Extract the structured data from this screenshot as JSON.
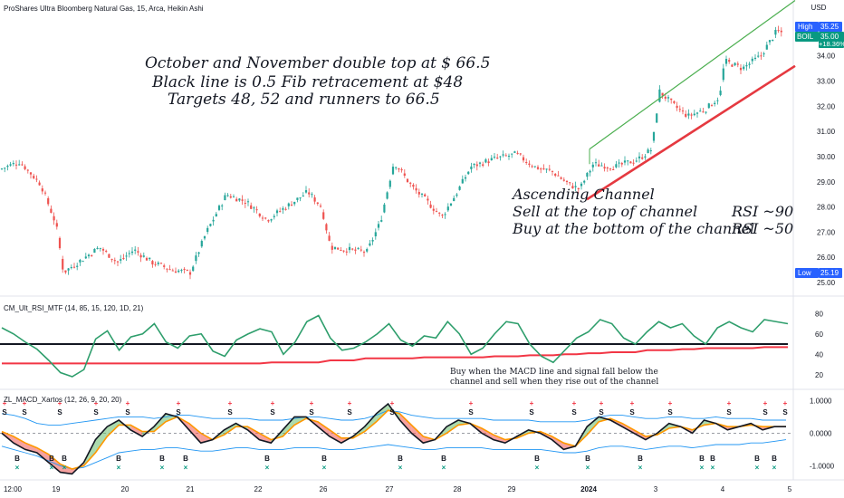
{
  "header": {
    "title": "ProShares Ultra Bloomberg Natural Gas, 15, Arca, Heikin Ashi",
    "currency": "USD"
  },
  "price_badges": {
    "high_label": "High",
    "high_value": "35.25",
    "symbol": "BOIL",
    "last_value": "35.00",
    "change": "+18.36%",
    "low_label": "Low",
    "low_value": "25.19"
  },
  "annotations": {
    "top_line1": "October and November double top at $ 66.5",
    "top_line2": "Black line is 0.5 Fib retracement at  $48",
    "top_line3": "Targets 48, 52 and runners to 66.5",
    "channel_line1": "Ascending Channel",
    "channel_line2": "Sell at the top of channel",
    "channel_line2b": "RSI ~90",
    "channel_line3": "Buy at the bottom of the channel",
    "channel_line3b": "RSI  ~50",
    "macd_note1": "Buy when the MACD line and signal fall below the",
    "macd_note2": "channel and sell when they rise out of the channel"
  },
  "colors": {
    "up": "#26a69a",
    "down": "#ef5350",
    "channel_upper": "#4caf50",
    "channel_lower": "#e53940",
    "rsi": "#2e9e6c",
    "rsi_ref": "#131722",
    "rsi_mtf": "#f23645",
    "macd": "#131722",
    "signal": "#ff9800",
    "band": "#2196f3",
    "badge_blue": "#2962ff",
    "badge_green": "#089981"
  },
  "chart_data": [
    {
      "type": "candlestick",
      "title": "ProShares Ultra Bloomberg Natural Gas, 15, Arca, Heikin Ashi",
      "y_axis_ticks": [
        "34.00",
        "33.00",
        "32.00",
        "31.00",
        "30.00",
        "29.00",
        "28.00",
        "27.00",
        "26.00",
        "25.00"
      ],
      "ylim": [
        25.0,
        35.5
      ],
      "x_axis_ticks": [
        "12:00",
        "19",
        "20",
        "21",
        "22",
        "26",
        "27",
        "28",
        "29",
        "2024",
        "3",
        "4",
        "5"
      ],
      "high": 35.25,
      "low": 25.19,
      "last": 35.0,
      "close_path": [
        {
          "x": 0,
          "y": 29.5
        },
        {
          "x": 22,
          "y": 29.8
        },
        {
          "x": 45,
          "y": 28.9
        },
        {
          "x": 62,
          "y": 27.3
        },
        {
          "x": 70,
          "y": 25.4
        },
        {
          "x": 90,
          "y": 25.9
        },
        {
          "x": 110,
          "y": 26.4
        },
        {
          "x": 130,
          "y": 25.8
        },
        {
          "x": 148,
          "y": 26.3
        },
        {
          "x": 168,
          "y": 25.8
        },
        {
          "x": 190,
          "y": 25.5
        },
        {
          "x": 210,
          "y": 25.4
        },
        {
          "x": 228,
          "y": 27.0
        },
        {
          "x": 250,
          "y": 28.5
        },
        {
          "x": 272,
          "y": 28.2
        },
        {
          "x": 295,
          "y": 27.5
        },
        {
          "x": 320,
          "y": 28.1
        },
        {
          "x": 340,
          "y": 28.6
        },
        {
          "x": 355,
          "y": 28.0
        },
        {
          "x": 365,
          "y": 26.4
        },
        {
          "x": 385,
          "y": 26.3
        },
        {
          "x": 405,
          "y": 26.2
        },
        {
          "x": 420,
          "y": 27.4
        },
        {
          "x": 435,
          "y": 29.8
        },
        {
          "x": 455,
          "y": 28.8
        },
        {
          "x": 472,
          "y": 28.2
        },
        {
          "x": 488,
          "y": 27.6
        },
        {
          "x": 505,
          "y": 28.6
        },
        {
          "x": 520,
          "y": 29.6
        },
        {
          "x": 545,
          "y": 29.9
        },
        {
          "x": 570,
          "y": 30.1
        },
        {
          "x": 590,
          "y": 29.6
        },
        {
          "x": 610,
          "y": 29.4
        },
        {
          "x": 628,
          "y": 28.9
        },
        {
          "x": 640,
          "y": 28.7
        },
        {
          "x": 655,
          "y": 29.7
        },
        {
          "x": 680,
          "y": 29.6
        },
        {
          "x": 705,
          "y": 29.9
        },
        {
          "x": 720,
          "y": 30.3
        },
        {
          "x": 728,
          "y": 32.6
        },
        {
          "x": 745,
          "y": 32.0
        },
        {
          "x": 760,
          "y": 31.6
        },
        {
          "x": 780,
          "y": 31.9
        },
        {
          "x": 795,
          "y": 32.4
        },
        {
          "x": 800,
          "y": 33.8
        },
        {
          "x": 820,
          "y": 33.5
        },
        {
          "x": 840,
          "y": 34.0
        },
        {
          "x": 858,
          "y": 35.0
        },
        {
          "x": 865,
          "y": 34.9
        }
      ],
      "channel_upper": {
        "from_x": 651,
        "from_y": 30.3,
        "to_x": 878,
        "to_y": 36.2
      },
      "channel_lower": {
        "from_x": 648,
        "from_y": 28.3,
        "to_x": 878,
        "to_y": 33.6
      }
    },
    {
      "type": "line",
      "title": "CM_Ult_RSI_MTF (14, 85, 15, 120, 1D, 21)",
      "y_axis_ticks": [
        "80",
        "60",
        "40",
        "20"
      ],
      "ylim": [
        10,
        90
      ],
      "reference_line": 50,
      "series": [
        {
          "name": "RSI",
          "values": [
            66,
            60,
            52,
            45,
            34,
            22,
            18,
            25,
            55,
            63,
            44,
            57,
            60,
            70,
            52,
            46,
            58,
            60,
            43,
            38,
            54,
            60,
            65,
            62,
            40,
            52,
            72,
            78,
            56,
            44,
            46,
            52,
            60,
            70,
            54,
            48,
            58,
            56,
            72,
            60,
            40,
            46,
            60,
            72,
            70,
            50,
            38,
            32,
            44,
            56,
            62,
            74,
            70,
            56,
            50,
            62,
            72,
            66,
            70,
            58,
            50,
            66,
            72,
            66,
            62,
            74,
            72,
            70
          ]
        },
        {
          "name": "MTF",
          "values": [
            31,
            31,
            31,
            31,
            31,
            31,
            31,
            31,
            31,
            31,
            31,
            31,
            31,
            31,
            31,
            31,
            31,
            31,
            31,
            31,
            31,
            31,
            31,
            32,
            32,
            32,
            32,
            32,
            34,
            34,
            34,
            36,
            36,
            36,
            36,
            36,
            37,
            37,
            37,
            37,
            37,
            37,
            38,
            38,
            38,
            39,
            39,
            39,
            40,
            40,
            41,
            41,
            42,
            42,
            42,
            44,
            44,
            44,
            45,
            45,
            46,
            46,
            46,
            46,
            46,
            47,
            47,
            47
          ]
        }
      ]
    },
    {
      "type": "line",
      "title": "ZL_MACD_Xartos (12, 26, 9, 20, 20)",
      "y_axis_ticks": [
        "1.0000",
        "0.0000",
        "-1.0000"
      ],
      "ylim": [
        -1.35,
        1.15
      ],
      "series": [
        {
          "name": "MACD",
          "values": [
            0.0,
            -0.3,
            -0.5,
            -0.6,
            -0.9,
            -1.2,
            -1.25,
            -0.9,
            -0.2,
            0.2,
            0.4,
            0.1,
            -0.1,
            0.2,
            0.6,
            0.5,
            0.1,
            -0.3,
            -0.2,
            0.1,
            0.3,
            0.1,
            -0.2,
            -0.3,
            0.1,
            0.5,
            0.5,
            0.2,
            -0.1,
            -0.3,
            -0.1,
            0.2,
            0.6,
            0.9,
            0.4,
            0.0,
            -0.3,
            -0.2,
            0.2,
            0.4,
            0.3,
            0.0,
            -0.2,
            -0.3,
            -0.1,
            0.1,
            0.0,
            -0.2,
            -0.5,
            -0.4,
            0.2,
            0.5,
            0.4,
            0.2,
            0.0,
            -0.2,
            0.0,
            0.3,
            0.2,
            0.0,
            0.4,
            0.3,
            0.1,
            0.2,
            0.3,
            0.1,
            0.2,
            0.2
          ]
        },
        {
          "name": "Signal",
          "values": [
            0.05,
            -0.1,
            -0.3,
            -0.45,
            -0.65,
            -0.95,
            -1.1,
            -1.0,
            -0.6,
            -0.1,
            0.25,
            0.25,
            0.05,
            0.05,
            0.35,
            0.5,
            0.3,
            0.0,
            -0.2,
            -0.05,
            0.2,
            0.2,
            0.0,
            -0.2,
            -0.1,
            0.25,
            0.45,
            0.35,
            0.1,
            -0.15,
            -0.15,
            0.05,
            0.35,
            0.7,
            0.6,
            0.25,
            -0.1,
            -0.2,
            0.0,
            0.25,
            0.3,
            0.15,
            -0.05,
            -0.2,
            -0.15,
            0.0,
            0.05,
            -0.1,
            -0.3,
            -0.4,
            -0.05,
            0.35,
            0.45,
            0.3,
            0.1,
            -0.1,
            -0.05,
            0.15,
            0.2,
            0.1,
            0.25,
            0.3,
            0.2,
            0.2,
            0.25,
            0.2,
            0.2,
            0.2
          ]
        },
        {
          "name": "Upper band",
          "values": [
            0.6,
            0.55,
            0.45,
            0.3,
            0.25,
            0.25,
            0.3,
            0.35,
            0.4,
            0.45,
            0.5,
            0.5,
            0.5,
            0.45,
            0.5,
            0.55,
            0.55,
            0.5,
            0.45,
            0.45,
            0.45,
            0.45,
            0.4,
            0.4,
            0.4,
            0.45,
            0.5,
            0.5,
            0.45,
            0.4,
            0.4,
            0.45,
            0.55,
            0.7,
            0.65,
            0.55,
            0.5,
            0.45,
            0.45,
            0.45,
            0.45,
            0.45,
            0.4,
            0.4,
            0.4,
            0.4,
            0.35,
            0.35,
            0.35,
            0.35,
            0.4,
            0.5,
            0.55,
            0.55,
            0.5,
            0.45,
            0.45,
            0.5,
            0.5,
            0.45,
            0.45,
            0.5,
            0.45,
            0.45,
            0.45,
            0.4,
            0.4,
            0.4
          ]
        },
        {
          "name": "Lower band",
          "values": [
            -0.4,
            -0.5,
            -0.6,
            -0.7,
            -0.85,
            -1.0,
            -1.1,
            -1.05,
            -0.9,
            -0.75,
            -0.6,
            -0.55,
            -0.5,
            -0.5,
            -0.45,
            -0.45,
            -0.5,
            -0.55,
            -0.55,
            -0.5,
            -0.45,
            -0.45,
            -0.5,
            -0.5,
            -0.5,
            -0.45,
            -0.45,
            -0.45,
            -0.5,
            -0.5,
            -0.5,
            -0.45,
            -0.4,
            -0.35,
            -0.4,
            -0.45,
            -0.5,
            -0.5,
            -0.45,
            -0.45,
            -0.45,
            -0.45,
            -0.5,
            -0.5,
            -0.5,
            -0.5,
            -0.5,
            -0.55,
            -0.6,
            -0.6,
            -0.55,
            -0.45,
            -0.4,
            -0.4,
            -0.45,
            -0.5,
            -0.45,
            -0.4,
            -0.4,
            -0.45,
            -0.4,
            -0.35,
            -0.35,
            -0.35,
            -0.3,
            -0.3,
            -0.25,
            -0.2
          ]
        }
      ],
      "sell_signals_x": [
        5,
        27,
        66,
        106,
        141,
        197,
        254,
        301,
        344,
        386,
        433,
        520,
        587,
        634,
        664,
        698,
        740,
        805,
        845,
        867
      ],
      "buy_signals_x": [
        19,
        57,
        71,
        131,
        179,
        205,
        295,
        358,
        442,
        490,
        593,
        649,
        707,
        775,
        787,
        836,
        855
      ]
    }
  ]
}
